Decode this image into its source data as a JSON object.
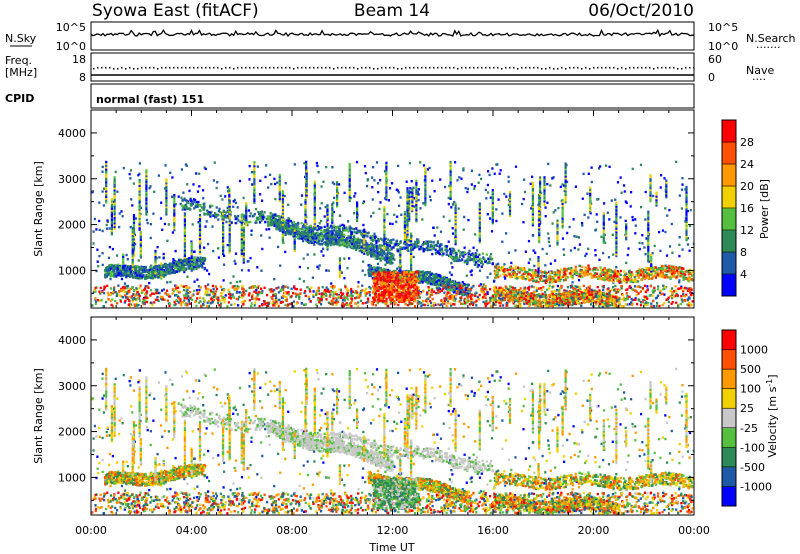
{
  "header": {
    "station": "Syowa East (fitACF)",
    "beam": "Beam 14",
    "date": "06/Oct/2010"
  },
  "nsky_panel": {
    "left_label": "N.Sky",
    "left_ticks": [
      "10^5",
      "10^0"
    ],
    "right_ticks": [
      "10^5",
      "10^0"
    ],
    "right_label": "N.Search",
    "right_line": "·······"
  },
  "freq_panel": {
    "left_label_1": "Freq.",
    "left_label_2": "[MHz]",
    "left_ticks": [
      "18",
      "8"
    ],
    "right_ticks": [
      "60",
      "0"
    ],
    "right_label": "Nave",
    "right_line": "····"
  },
  "cpid": {
    "label": "CPID",
    "value": "normal (fast) 151"
  },
  "chart_data": [
    {
      "type": "heatmap",
      "quantity": "Power",
      "ylabel": "Slant Range [km]",
      "yticks": [
        "4000",
        "3000",
        "2000",
        "1000"
      ],
      "ylim": [
        180,
        4500
      ],
      "xlim": [
        0,
        24
      ],
      "colorbar": {
        "label": "Power [dB]",
        "ticks": [
          "28",
          "24",
          "20",
          "16",
          "12",
          "8",
          "4"
        ],
        "colors": [
          "#0000ff",
          "#1f5aa8",
          "#2e8b57",
          "#55c040",
          "#f0d000",
          "#ff9900",
          "#ff5000",
          "#ff0000"
        ]
      },
      "echo_bands": [
        {
          "from_hour": 3.5,
          "to_hour": 16,
          "start_km": 2400,
          "end_km": 1200
        },
        {
          "from_hour": 7,
          "to_hour": 12,
          "start_km": 2000,
          "end_km": 1300
        },
        {
          "from_hour": 0.5,
          "to_hour": 4.5,
          "start_km": 900,
          "end_km": 1100
        },
        {
          "from_hour": 11,
          "to_hour": 15,
          "start_km": 1000,
          "end_km": 600
        },
        {
          "from_hour": 16,
          "to_hour": 24,
          "start_km": 900,
          "end_km": 900
        },
        {
          "from_hour": 16,
          "to_hour": 21,
          "start_km": 400,
          "end_km": 350
        }
      ]
    },
    {
      "type": "heatmap",
      "quantity": "Velocity",
      "ylabel": "Slant Range [km]",
      "yticks": [
        "4000",
        "3000",
        "2000",
        "1000"
      ],
      "ylim": [
        180,
        4500
      ],
      "xlim": [
        0,
        24
      ],
      "xticks": [
        "00:00",
        "04:00",
        "08:00",
        "12:00",
        "16:00",
        "20:00",
        "00:00"
      ],
      "xlabel": "Time UT",
      "colorbar": {
        "label": "Velocity [m s",
        "label_sup": "-1",
        "label_end": "]",
        "ticks": [
          "1000",
          "500",
          "100",
          "25",
          "-25",
          "-100",
          "-500",
          "-1000"
        ],
        "colors": [
          "#0000ff",
          "#1f5aa8",
          "#2e8b57",
          "#55c040",
          "#c8c8c8",
          "#f0d000",
          "#ff9900",
          "#ff5000",
          "#ff0000"
        ]
      }
    }
  ]
}
